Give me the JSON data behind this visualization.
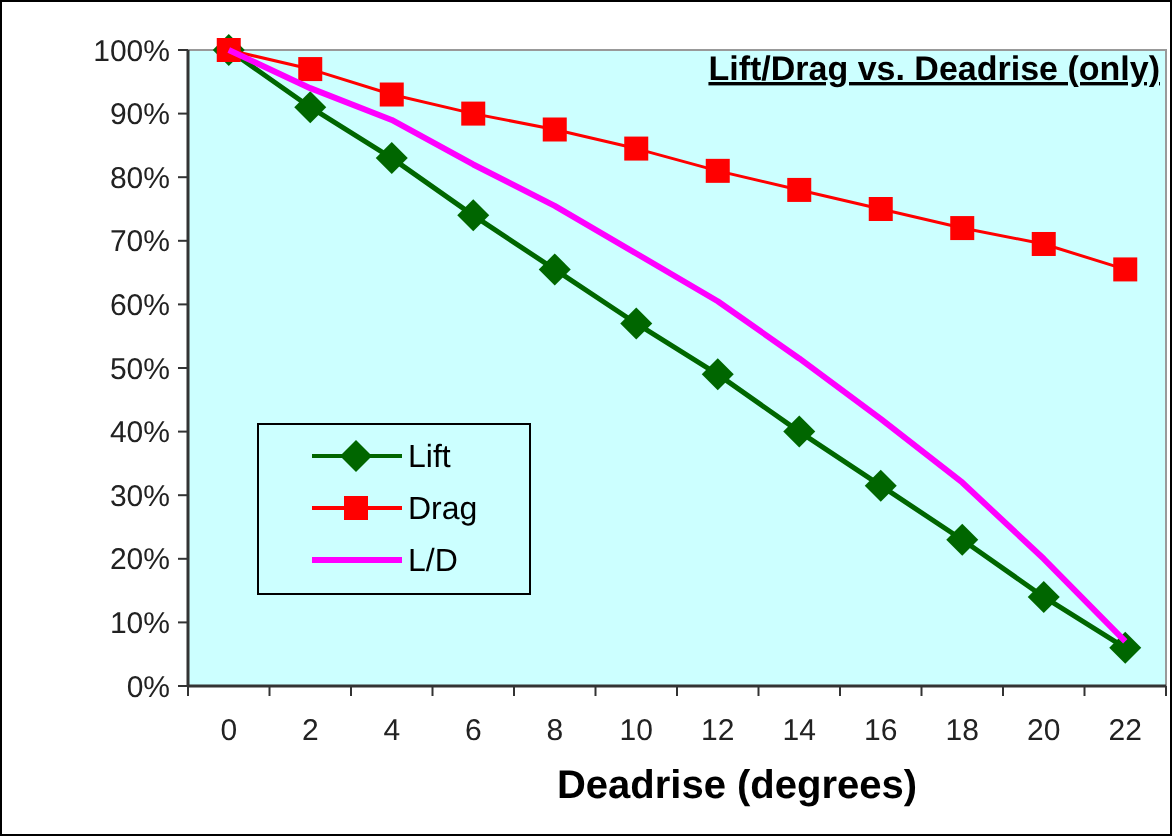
{
  "chart_data": {
    "type": "line",
    "title": "Lift/Drag vs. Deadrise (only)",
    "xlabel": "Deadrise (degrees)",
    "categories": [
      "0",
      "2",
      "4",
      "6",
      "8",
      "10",
      "12",
      "14",
      "16",
      "18",
      "20",
      "22"
    ],
    "series": [
      {
        "name": "Lift",
        "color": "#006600",
        "marker": "diamond",
        "values": [
          100,
          91,
          83,
          74,
          65.5,
          57,
          49,
          40,
          31.5,
          23,
          14,
          6
        ]
      },
      {
        "name": "Drag",
        "color": "#ff0000",
        "marker": "square",
        "values": [
          100,
          97,
          93,
          90,
          87.5,
          84.5,
          81,
          78,
          75,
          72,
          69.5,
          65.5
        ]
      },
      {
        "name": "L/D",
        "color": "#ff00ff",
        "marker": "none",
        "values": [
          100,
          94,
          89,
          82,
          75.5,
          68,
          60.5,
          51.5,
          42,
          32,
          20,
          7
        ]
      }
    ],
    "ylim": [
      0,
      100
    ],
    "yticks": [
      {
        "value": 0,
        "label": "0%"
      },
      {
        "value": 10,
        "label": "10%"
      },
      {
        "value": 20,
        "label": "20%"
      },
      {
        "value": 30,
        "label": "30%"
      },
      {
        "value": 40,
        "label": "40%"
      },
      {
        "value": 50,
        "label": "50%"
      },
      {
        "value": 60,
        "label": "60%"
      },
      {
        "value": 70,
        "label": "70%"
      },
      {
        "value": 80,
        "label": "80%"
      },
      {
        "value": 90,
        "label": "90%"
      },
      {
        "value": 100,
        "label": "100%"
      }
    ],
    "grid": false,
    "legend": "left"
  }
}
